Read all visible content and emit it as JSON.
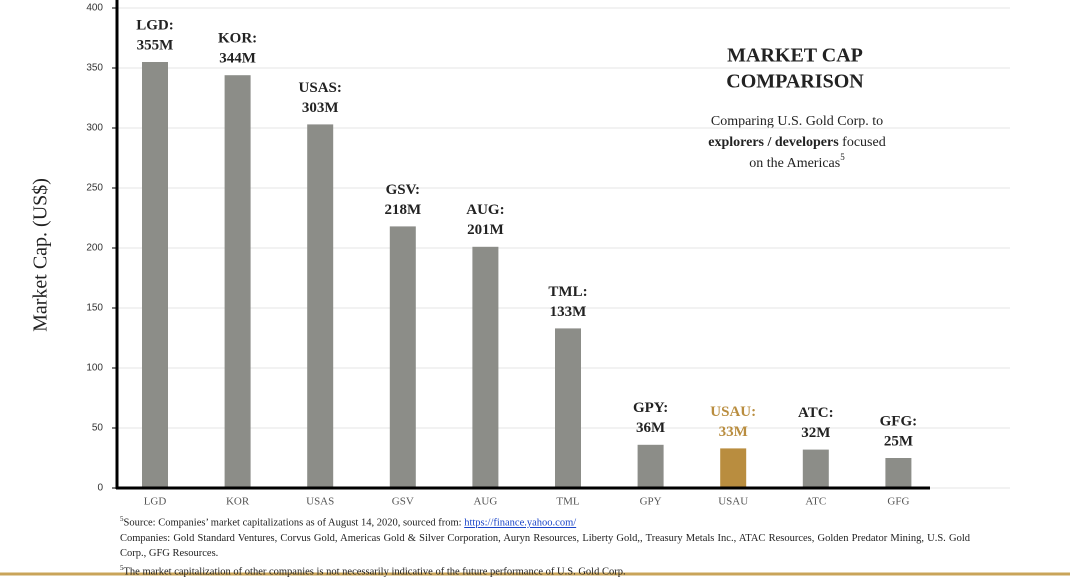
{
  "chart_data": {
    "type": "bar",
    "title_lines": [
      "MARKET CAP",
      "COMPARISON"
    ],
    "subtitle_lines": [
      [
        {
          "text": "Comparing U.S. Gold Corp. to"
        }
      ],
      [
        {
          "text": "explorers / developers",
          "bold": true
        },
        {
          "text": " focused"
        }
      ],
      [
        {
          "text": "on the Americas"
        },
        {
          "text": "5",
          "sup": true
        }
      ]
    ],
    "y_label": "Market Cap. (US$)",
    "categories": [
      "LGD",
      "KOR",
      "USAS",
      "GSV",
      "AUG",
      "TML",
      "GPY",
      "USAU",
      "ATC",
      "GFG"
    ],
    "values": [
      355,
      344,
      303,
      218,
      201,
      133,
      36,
      33,
      32,
      25
    ],
    "value_labels": [
      "355M",
      "344M",
      "303M",
      "218M",
      "201M",
      "133M",
      "36M",
      "33M",
      "32M",
      "25M"
    ],
    "value_label_prefixes": [
      "LGD:",
      "KOR:",
      "USAS:",
      "GSV:",
      "AUG:",
      "TML:",
      "GPY:",
      "USAU:",
      "ATC:",
      "GFG:"
    ],
    "colors": [
      "#8c8d88",
      "#8c8d88",
      "#8c8d88",
      "#8c8d88",
      "#8c8d88",
      "#8c8d88",
      "#8c8d88",
      "#b98d3f",
      "#8c8d88",
      "#8c8d88"
    ],
    "ylim": [
      0,
      400
    ],
    "yticks": [
      0,
      50,
      100,
      150,
      200,
      250,
      300,
      350,
      400
    ],
    "grid": true,
    "footnotes": [
      {
        "sup": "5",
        "text": "Source: Companies’ market capitalizations as of August 14, 2020, sourced from: ",
        "link": "https://finance.yahoo.com/"
      },
      {
        "text": "Companies: Gold Standard Ventures, Corvus Gold, Americas Gold & Silver Corporation, Auryn Resources, Liberty Gold,, Treasury Metals Inc., ATAC Resources, Golden Predator Mining, U.S. Gold Corp., GFG Resources."
      },
      {
        "sup": "5",
        "text": "The market capitalization of other companies is not necessarily indicative of the future performance of U.S. Gold Corp."
      }
    ]
  }
}
